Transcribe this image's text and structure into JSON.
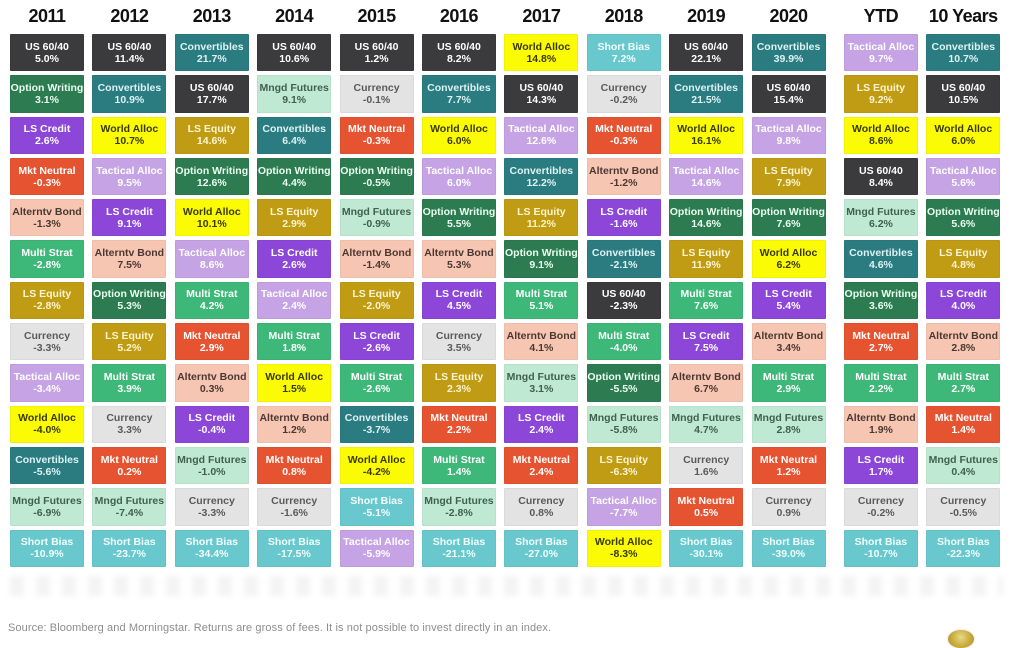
{
  "page": {
    "footer_source": "Source: Bloomberg and Morningstar. Returns are gross of fees. It is not possible to invest directly in an index."
  },
  "category_colors": {
    "US 60/40": {
      "bg": "#3b3b3d",
      "text": "#ffffff"
    },
    "Option Writing": {
      "bg": "#2d7b50",
      "text": "#e8fff1"
    },
    "LS Credit": {
      "bg": "#8c46d8",
      "text": "#ffffff"
    },
    "Mkt Neutral": {
      "bg": "#e65331",
      "text": "#ffffff"
    },
    "Alterntv Bond": {
      "bg": "#f6c6b2",
      "text": "#4c3832"
    },
    "Multi Strat": {
      "bg": "#3eb878",
      "text": "#ffffff"
    },
    "LS Equity": {
      "bg": "#c09c15",
      "text": "#fdf4cf"
    },
    "Currency": {
      "bg": "#e3e3e3",
      "text": "#5a5a5a"
    },
    "Tactical Alloc": {
      "bg": "#c6a3e4",
      "text": "#ffffff"
    },
    "World Alloc": {
      "bg": "#fbfb05",
      "text": "#3a3a00"
    },
    "Convertibles": {
      "bg": "#2b7c81",
      "text": "#dcf2f3"
    },
    "Mngd Futures": {
      "bg": "#bfe9d2",
      "text": "#41604f"
    },
    "Short Bias": {
      "bg": "#68c8cd",
      "text": "#f2ffff"
    }
  },
  "chart_data": {
    "type": "table",
    "value_unit": "%",
    "legend_position": "none",
    "columns": [
      {
        "label": "2011",
        "extra_gap": false,
        "cells": [
          {
            "name": "US 60/40",
            "value": "5.0%"
          },
          {
            "name": "Option Writing",
            "value": "3.1%"
          },
          {
            "name": "LS Credit",
            "value": "2.6%"
          },
          {
            "name": "Mkt Neutral",
            "value": "-0.3%"
          },
          {
            "name": "Alterntv Bond",
            "value": "-1.3%"
          },
          {
            "name": "Multi Strat",
            "value": "-2.8%"
          },
          {
            "name": "LS Equity",
            "value": "-2.8%"
          },
          {
            "name": "Currency",
            "value": "-3.3%"
          },
          {
            "name": "Tactical Alloc",
            "value": "-3.4%"
          },
          {
            "name": "World Alloc",
            "value": "-4.0%"
          },
          {
            "name": "Convertibles",
            "value": "-5.6%"
          },
          {
            "name": "Mngd Futures",
            "value": "-6.9%"
          },
          {
            "name": "Short Bias",
            "value": "-10.9%"
          }
        ]
      },
      {
        "label": "2012",
        "extra_gap": false,
        "cells": [
          {
            "name": "US 60/40",
            "value": "11.4%"
          },
          {
            "name": "Convertibles",
            "value": "10.9%"
          },
          {
            "name": "World Alloc",
            "value": "10.7%"
          },
          {
            "name": "Tactical Alloc",
            "value": "9.5%"
          },
          {
            "name": "LS Credit",
            "value": "9.1%"
          },
          {
            "name": "Alterntv Bond",
            "value": "7.5%"
          },
          {
            "name": "Option Writing",
            "value": "5.3%"
          },
          {
            "name": "LS Equity",
            "value": "5.2%"
          },
          {
            "name": "Multi Strat",
            "value": "3.9%"
          },
          {
            "name": "Currency",
            "value": "3.3%"
          },
          {
            "name": "Mkt Neutral",
            "value": "0.2%"
          },
          {
            "name": "Mngd Futures",
            "value": "-7.4%"
          },
          {
            "name": "Short Bias",
            "value": "-23.7%"
          }
        ]
      },
      {
        "label": "2013",
        "extra_gap": false,
        "cells": [
          {
            "name": "Convertibles",
            "value": "21.7%"
          },
          {
            "name": "US 60/40",
            "value": "17.7%"
          },
          {
            "name": "LS Equity",
            "value": "14.6%"
          },
          {
            "name": "Option Writing",
            "value": "12.6%"
          },
          {
            "name": "World Alloc",
            "value": "10.1%"
          },
          {
            "name": "Tactical Alloc",
            "value": "8.6%"
          },
          {
            "name": "Multi Strat",
            "value": "4.2%"
          },
          {
            "name": "Mkt Neutral",
            "value": "2.9%"
          },
          {
            "name": "Alterntv Bond",
            "value": "0.3%"
          },
          {
            "name": "LS Credit",
            "value": "-0.4%"
          },
          {
            "name": "Mngd Futures",
            "value": "-1.0%"
          },
          {
            "name": "Currency",
            "value": "-3.3%"
          },
          {
            "name": "Short Bias",
            "value": "-34.4%"
          }
        ]
      },
      {
        "label": "2014",
        "extra_gap": false,
        "cells": [
          {
            "name": "US 60/40",
            "value": "10.6%"
          },
          {
            "name": "Mngd Futures",
            "value": "9.1%"
          },
          {
            "name": "Convertibles",
            "value": "6.4%"
          },
          {
            "name": "Option Writing",
            "value": "4.4%"
          },
          {
            "name": "LS Equity",
            "value": "2.9%"
          },
          {
            "name": "LS Credit",
            "value": "2.6%"
          },
          {
            "name": "Tactical Alloc",
            "value": "2.4%"
          },
          {
            "name": "Multi Strat",
            "value": "1.8%"
          },
          {
            "name": "World Alloc",
            "value": "1.5%"
          },
          {
            "name": "Alterntv Bond",
            "value": "1.2%"
          },
          {
            "name": "Mkt Neutral",
            "value": "0.8%"
          },
          {
            "name": "Currency",
            "value": "-1.6%"
          },
          {
            "name": "Short Bias",
            "value": "-17.5%"
          }
        ]
      },
      {
        "label": "2015",
        "extra_gap": false,
        "cells": [
          {
            "name": "US 60/40",
            "value": "1.2%"
          },
          {
            "name": "Currency",
            "value": "-0.1%"
          },
          {
            "name": "Mkt Neutral",
            "value": "-0.3%"
          },
          {
            "name": "Option Writing",
            "value": "-0.5%"
          },
          {
            "name": "Mngd Futures",
            "value": "-0.9%"
          },
          {
            "name": "Alterntv Bond",
            "value": "-1.4%"
          },
          {
            "name": "LS Equity",
            "value": "-2.0%"
          },
          {
            "name": "LS Credit",
            "value": "-2.6%"
          },
          {
            "name": "Multi Strat",
            "value": "-2.6%"
          },
          {
            "name": "Convertibles",
            "value": "-3.7%"
          },
          {
            "name": "World Alloc",
            "value": "-4.2%"
          },
          {
            "name": "Short Bias",
            "value": "-5.1%"
          },
          {
            "name": "Tactical Alloc",
            "value": "-5.9%"
          }
        ]
      },
      {
        "label": "2016",
        "extra_gap": false,
        "cells": [
          {
            "name": "US 60/40",
            "value": "8.2%"
          },
          {
            "name": "Convertibles",
            "value": "7.7%"
          },
          {
            "name": "World Alloc",
            "value": "6.0%"
          },
          {
            "name": "Tactical Alloc",
            "value": "6.0%"
          },
          {
            "name": "Option Writing",
            "value": "5.5%"
          },
          {
            "name": "Alterntv Bond",
            "value": "5.3%"
          },
          {
            "name": "LS Credit",
            "value": "4.5%"
          },
          {
            "name": "Currency",
            "value": "3.5%"
          },
          {
            "name": "LS Equity",
            "value": "2.3%"
          },
          {
            "name": "Mkt Neutral",
            "value": "2.2%"
          },
          {
            "name": "Multi Strat",
            "value": "1.4%"
          },
          {
            "name": "Mngd Futures",
            "value": "-2.8%"
          },
          {
            "name": "Short Bias",
            "value": "-21.1%"
          }
        ]
      },
      {
        "label": "2017",
        "extra_gap": false,
        "cells": [
          {
            "name": "World Alloc",
            "value": "14.8%"
          },
          {
            "name": "US 60/40",
            "value": "14.3%"
          },
          {
            "name": "Tactical Alloc",
            "value": "12.6%"
          },
          {
            "name": "Convertibles",
            "value": "12.2%"
          },
          {
            "name": "LS Equity",
            "value": "11.2%"
          },
          {
            "name": "Option Writing",
            "value": "9.1%"
          },
          {
            "name": "Multi Strat",
            "value": "5.1%"
          },
          {
            "name": "Alterntv Bond",
            "value": "4.1%"
          },
          {
            "name": "Mngd Futures",
            "value": "3.1%"
          },
          {
            "name": "LS Credit",
            "value": "2.4%"
          },
          {
            "name": "Mkt Neutral",
            "value": "2.4%"
          },
          {
            "name": "Currency",
            "value": "0.8%"
          },
          {
            "name": "Short Bias",
            "value": "-27.0%"
          }
        ]
      },
      {
        "label": "2018",
        "extra_gap": false,
        "cells": [
          {
            "name": "Short Bias",
            "value": "7.2%"
          },
          {
            "name": "Currency",
            "value": "-0.2%"
          },
          {
            "name": "Mkt Neutral",
            "value": "-0.3%"
          },
          {
            "name": "Alterntv Bond",
            "value": "-1.2%"
          },
          {
            "name": "LS Credit",
            "value": "-1.6%"
          },
          {
            "name": "Convertibles",
            "value": "-2.1%"
          },
          {
            "name": "US 60/40",
            "value": "-2.3%"
          },
          {
            "name": "Multi Strat",
            "value": "-4.0%"
          },
          {
            "name": "Option Writing",
            "value": "-5.5%"
          },
          {
            "name": "Mngd Futures",
            "value": "-5.8%"
          },
          {
            "name": "LS Equity",
            "value": "-6.3%"
          },
          {
            "name": "Tactical Alloc",
            "value": "-7.7%"
          },
          {
            "name": "World Alloc",
            "value": "-8.3%"
          }
        ]
      },
      {
        "label": "2019",
        "extra_gap": false,
        "cells": [
          {
            "name": "US 60/40",
            "value": "22.1%"
          },
          {
            "name": "Convertibles",
            "value": "21.5%"
          },
          {
            "name": "World Alloc",
            "value": "16.1%"
          },
          {
            "name": "Tactical Alloc",
            "value": "14.6%"
          },
          {
            "name": "Option Writing",
            "value": "14.6%"
          },
          {
            "name": "LS Equity",
            "value": "11.9%"
          },
          {
            "name": "Multi Strat",
            "value": "7.6%"
          },
          {
            "name": "LS Credit",
            "value": "7.5%"
          },
          {
            "name": "Alterntv Bond",
            "value": "6.7%"
          },
          {
            "name": "Mngd Futures",
            "value": "4.7%"
          },
          {
            "name": "Currency",
            "value": "1.6%"
          },
          {
            "name": "Mkt Neutral",
            "value": "0.5%"
          },
          {
            "name": "Short Bias",
            "value": "-30.1%"
          }
        ]
      },
      {
        "label": "2020",
        "extra_gap": false,
        "cells": [
          {
            "name": "Convertibles",
            "value": "39.9%"
          },
          {
            "name": "US 60/40",
            "value": "15.4%"
          },
          {
            "name": "Tactical Alloc",
            "value": "9.8%"
          },
          {
            "name": "LS Equity",
            "value": "7.9%"
          },
          {
            "name": "Option Writing",
            "value": "7.6%"
          },
          {
            "name": "World Alloc",
            "value": "6.2%"
          },
          {
            "name": "LS Credit",
            "value": "5.4%"
          },
          {
            "name": "Alterntv Bond",
            "value": "3.4%"
          },
          {
            "name": "Multi Strat",
            "value": "2.9%"
          },
          {
            "name": "Mngd Futures",
            "value": "2.8%"
          },
          {
            "name": "Mkt Neutral",
            "value": "1.2%"
          },
          {
            "name": "Currency",
            "value": "0.9%"
          },
          {
            "name": "Short Bias",
            "value": "-39.0%"
          }
        ]
      },
      {
        "label": "YTD",
        "extra_gap": true,
        "cells": [
          {
            "name": "Tactical Alloc",
            "value": "9.7%"
          },
          {
            "name": "LS Equity",
            "value": "9.2%"
          },
          {
            "name": "World Alloc",
            "value": "8.6%"
          },
          {
            "name": "US 60/40",
            "value": "8.4%"
          },
          {
            "name": "Mngd Futures",
            "value": "6.2%"
          },
          {
            "name": "Convertibles",
            "value": "4.6%"
          },
          {
            "name": "Option Writing",
            "value": "3.6%"
          },
          {
            "name": "Mkt Neutral",
            "value": "2.7%"
          },
          {
            "name": "Multi Strat",
            "value": "2.2%"
          },
          {
            "name": "Alterntv Bond",
            "value": "1.9%"
          },
          {
            "name": "LS Credit",
            "value": "1.7%"
          },
          {
            "name": "Currency",
            "value": "-0.2%"
          },
          {
            "name": "Short Bias",
            "value": "-10.7%"
          }
        ]
      },
      {
        "label": "10 Years",
        "extra_gap": false,
        "cells": [
          {
            "name": "Convertibles",
            "value": "10.7%"
          },
          {
            "name": "US 60/40",
            "value": "10.5%"
          },
          {
            "name": "World Alloc",
            "value": "6.0%"
          },
          {
            "name": "Tactical Alloc",
            "value": "5.6%"
          },
          {
            "name": "Option Writing",
            "value": "5.6%"
          },
          {
            "name": "LS Equity",
            "value": "4.8%"
          },
          {
            "name": "LS Credit",
            "value": "4.0%"
          },
          {
            "name": "Alterntv Bond",
            "value": "2.8%"
          },
          {
            "name": "Multi Strat",
            "value": "2.7%"
          },
          {
            "name": "Mkt Neutral",
            "value": "1.4%"
          },
          {
            "name": "Mngd Futures",
            "value": "0.4%"
          },
          {
            "name": "Currency",
            "value": "-0.5%"
          },
          {
            "name": "Short Bias",
            "value": "-22.3%"
          }
        ]
      }
    ]
  }
}
